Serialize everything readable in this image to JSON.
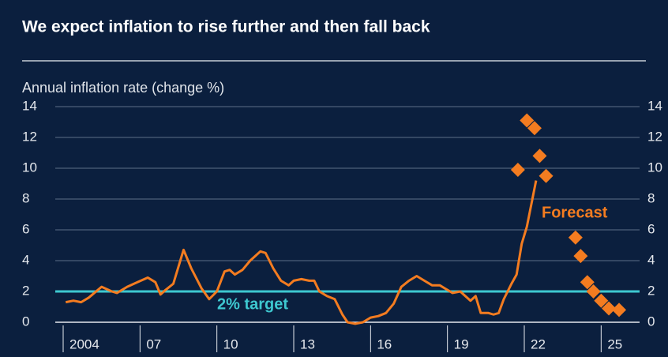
{
  "chart_data": {
    "type": "line",
    "title": "We expect inflation to rise further and then fall back",
    "ylabel": "Annual inflation rate (change %)",
    "xlim": [
      2004,
      2026.5
    ],
    "xticks": [
      2004,
      {
        "value": 2007,
        "label": "07"
      },
      {
        "value": 2010,
        "label": "10"
      },
      {
        "value": 2013,
        "label": "13"
      },
      {
        "value": 2016,
        "label": "16"
      },
      {
        "value": 2019,
        "label": "19"
      },
      {
        "value": 2022,
        "label": "22"
      },
      {
        "value": 2025,
        "label": "25"
      }
    ],
    "ylim": [
      0,
      14
    ],
    "yticks": [
      0,
      2,
      4,
      6,
      8,
      10,
      12,
      14
    ],
    "grid": true,
    "target": 2,
    "target_color": "#3ec8d0",
    "target_label": "2% target",
    "annotation": "Forecast",
    "series": [
      {
        "color": "#f47c20",
        "x": [
          2004.1,
          2004.4,
          2004.7,
          2005.0,
          2005.5,
          2005.9,
          2006.1,
          2006.5,
          2006.9,
          2007.3,
          2007.6,
          2007.8,
          2008.0,
          2008.3,
          2008.7,
          2009.0,
          2009.4,
          2009.7,
          2010.0,
          2010.3,
          2010.5,
          2010.7,
          2011.0,
          2011.3,
          2011.7,
          2011.9,
          2012.2,
          2012.5,
          2012.8,
          2013.0,
          2013.3,
          2013.6,
          2013.8,
          2014.0,
          2014.3,
          2014.6,
          2014.9,
          2015.1,
          2015.4,
          2015.7,
          2016.0,
          2016.3,
          2016.6,
          2016.9,
          2017.2,
          2017.5,
          2017.8,
          2018.1,
          2018.4,
          2018.7,
          2018.9,
          2019.2,
          2019.5,
          2019.7,
          2019.9,
          2020.1,
          2020.3,
          2020.6,
          2020.8,
          2021.0,
          2021.2,
          2021.5,
          2021.7,
          2021.9,
          2022.1,
          2022.46
        ],
        "values": [
          1.3,
          1.4,
          1.3,
          1.6,
          2.3,
          2.0,
          1.9,
          2.3,
          2.6,
          2.9,
          2.6,
          1.8,
          2.1,
          2.5,
          4.7,
          3.5,
          2.2,
          1.5,
          2.0,
          3.3,
          3.4,
          3.1,
          3.4,
          4.0,
          4.6,
          4.5,
          3.5,
          2.7,
          2.4,
          2.7,
          2.8,
          2.7,
          2.7,
          2.0,
          1.7,
          1.5,
          0.5,
          0.0,
          -0.1,
          0.0,
          0.3,
          0.4,
          0.6,
          1.2,
          2.3,
          2.7,
          3.0,
          2.7,
          2.4,
          2.4,
          2.2,
          1.9,
          2.0,
          1.7,
          1.4,
          1.7,
          0.6,
          0.6,
          0.5,
          0.6,
          1.5,
          2.5,
          3.1,
          5.1,
          6.2,
          9.2
        ]
      },
      {
        "color": "#f47c20",
        "marker": "diamond",
        "x": [
          2021.75,
          2022.1,
          2022.4,
          2022.6,
          2022.85,
          2024.0,
          2024.2,
          2024.46,
          2024.7,
          2025.0,
          2025.3,
          2025.7
        ],
        "values": [
          9.9,
          13.1,
          12.6,
          10.8,
          9.5,
          5.5,
          4.3,
          2.6,
          2.0,
          1.4,
          0.9,
          0.8
        ]
      }
    ]
  }
}
